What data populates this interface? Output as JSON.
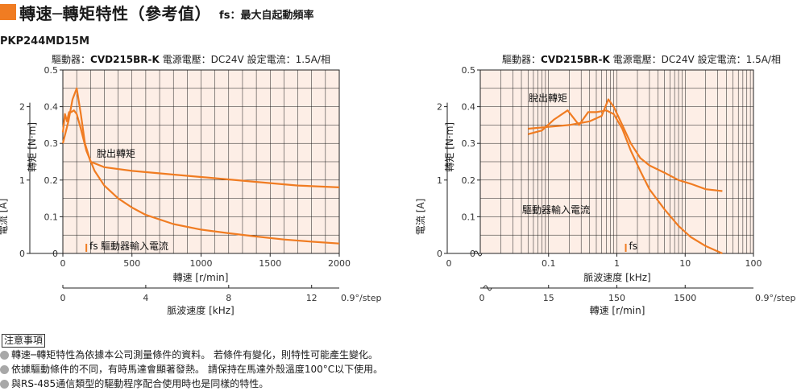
{
  "header": {
    "title": "轉速─轉矩特性（參考值）",
    "subtitle": "fs：最大自起動頻率"
  },
  "model": "PKP244MD15M",
  "colors": {
    "curve": "#f07c22",
    "plot_bg": "#fdeee6",
    "grid": "#1a1a1a"
  },
  "chart_data": [
    {
      "type": "line",
      "x_scale": "linear",
      "header": {
        "driver_label": "驅動器：",
        "driver_value": "CVD215BR-K",
        "voltage_label": "電源電壓：",
        "voltage_value": "DC24V",
        "current_label": "設定電流：",
        "current_value": "1.5A/相"
      },
      "xlabel": "轉速 [r/min]",
      "ylabel": "轉矩 [N·m]",
      "y2label": "電流 [A]",
      "x2label": "脈波速度 [kHz]",
      "xlim": [
        0,
        2000
      ],
      "ylim": [
        0,
        0.5
      ],
      "y2lim": [
        0,
        2.5
      ],
      "x_ticks": [
        "0",
        "500",
        "1000",
        "1500",
        "2000"
      ],
      "y_ticks": [
        "0",
        "0.1",
        "0.2",
        "0.3",
        "0.4",
        "0.5"
      ],
      "y2_ticks": [
        "0",
        "1",
        "2"
      ],
      "x2_ticks": [
        "0",
        "4",
        "8",
        "12"
      ],
      "x2_unit": "0.9°/step",
      "series": [
        {
          "name": "脫出轉矩",
          "x": [
            0,
            15,
            30,
            45,
            60,
            80,
            100,
            130,
            170,
            230,
            300,
            400,
            500,
            600,
            800,
            1000,
            1200,
            1400,
            1600,
            1800,
            2000
          ],
          "y": [
            0.33,
            0.38,
            0.36,
            0.385,
            0.385,
            0.39,
            0.38,
            0.34,
            0.28,
            0.225,
            0.185,
            0.15,
            0.125,
            0.105,
            0.08,
            0.065,
            0.055,
            0.046,
            0.038,
            0.032,
            0.027
          ]
        },
        {
          "name": "驅動器輸入電流",
          "x": [
            0,
            40,
            70,
            100,
            130,
            160,
            200,
            300,
            500,
            800,
            1100,
            1400,
            1700,
            2000
          ],
          "y": [
            0.3,
            0.36,
            0.42,
            0.45,
            0.38,
            0.3,
            0.25,
            0.235,
            0.225,
            0.215,
            0.205,
            0.195,
            0.185,
            0.18
          ]
        }
      ],
      "fs": {
        "label": "fs",
        "x": 170,
        "y": 0.03
      }
    },
    {
      "type": "line",
      "x_scale": "log",
      "header": {
        "driver_label": "驅動器：",
        "driver_value": "CVD215BR-K",
        "voltage_label": "電源電壓：",
        "voltage_value": "DC24V",
        "current_label": "設定電流：",
        "current_value": "1.5A/相"
      },
      "xlabel": "脈波速度 [kHz]",
      "ylabel": "轉矩 [N·m]",
      "y2label": "電流 [A]",
      "x2label": "轉速 [r/min]",
      "xlim": [
        0.01,
        100
      ],
      "ylim": [
        0,
        0.5
      ],
      "y2lim": [
        0,
        2.5
      ],
      "x_ticks": [
        "0.1",
        "1",
        "10",
        "100"
      ],
      "y_ticks": [
        "0",
        "0.1",
        "0.2",
        "0.3",
        "0.4",
        "0.5"
      ],
      "y2_ticks": [
        "0",
        "1",
        "2"
      ],
      "x_zero_label": "0",
      "x2_ticks": [
        "15",
        "150",
        "1500"
      ],
      "x2_zero_label": "0",
      "x2_unit": "0.9°/step",
      "series": [
        {
          "name": "脫出轉矩",
          "x": [
            0.05,
            0.08,
            0.12,
            0.19,
            0.28,
            0.38,
            0.5,
            0.7,
            0.9,
            1.2,
            1.6,
            2.2,
            3,
            5,
            8,
            12,
            20,
            35
          ],
          "y": [
            0.325,
            0.335,
            0.365,
            0.39,
            0.35,
            0.385,
            0.385,
            0.39,
            0.38,
            0.34,
            0.28,
            0.225,
            0.175,
            0.12,
            0.075,
            0.045,
            0.02,
            0.0
          ]
        },
        {
          "name": "驅動器輸入電流",
          "x": [
            0.05,
            0.1,
            0.2,
            0.4,
            0.6,
            0.75,
            0.9,
            1.2,
            1.6,
            2.2,
            3,
            5,
            8,
            12,
            20,
            35
          ],
          "y": [
            0.34,
            0.345,
            0.35,
            0.36,
            0.375,
            0.42,
            0.4,
            0.35,
            0.3,
            0.26,
            0.24,
            0.22,
            0.2,
            0.19,
            0.175,
            0.17
          ]
        }
      ],
      "fs": {
        "label": "fs",
        "x": 1.35,
        "y": 0.03
      }
    }
  ],
  "notes": {
    "title": "注意事項",
    "items": [
      "轉速─轉矩特性為依據本公司測量條件的資料。 若條件有變化，則特性可能產生變化。",
      "依據驅動條件的不同，有時馬達會顯著發熱。 請保持在馬達外殼溫度100°C以下使用。",
      "與RS-485通信類型的驅動程序配合使用時也是同樣的特性。"
    ]
  }
}
